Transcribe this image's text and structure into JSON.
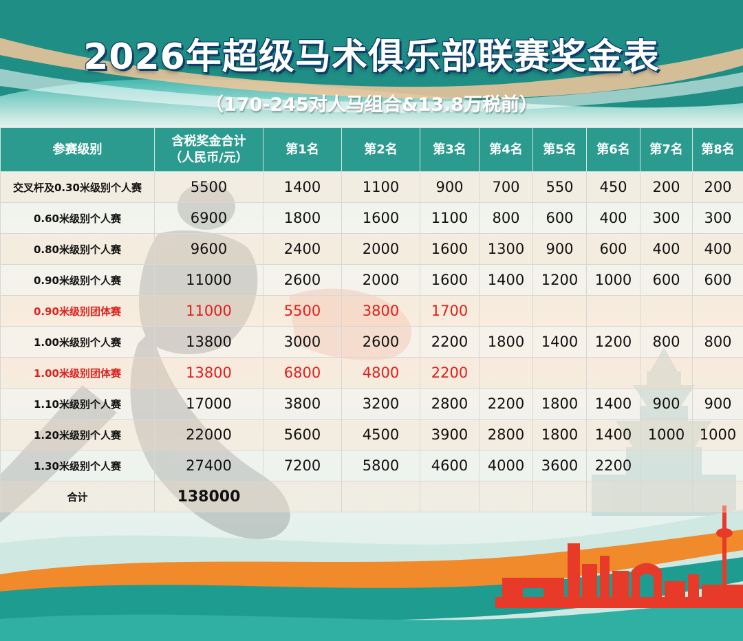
{
  "title": "2026年超级马术俱乐部联赛奖金表",
  "subtitle": "（170-245对人马组合&13.8万税前）",
  "colors": {
    "header_bg": "#2c9b8f",
    "team_text": "#e0201c",
    "title_shadow": "#0b3d6b"
  },
  "table": {
    "headers": [
      "参赛级别",
      "含税奖金合计（人民币/元）",
      "第1名",
      "第2名",
      "第3名",
      "第4名",
      "第5名",
      "第6名",
      "第7名",
      "第8名"
    ],
    "header_total_line1": "含税奖金合计",
    "header_total_line2": "（人民币/元）",
    "rows": [
      [
        "交叉杆及0.30米级别个人赛",
        "5500",
        "1400",
        "1100",
        "900",
        "700",
        "550",
        "450",
        "200",
        "200"
      ],
      [
        "0.60米级别个人赛",
        "6900",
        "1800",
        "1600",
        "1100",
        "800",
        "600",
        "400",
        "300",
        "300"
      ],
      [
        "0.80米级别个人赛",
        "9600",
        "2400",
        "2000",
        "1600",
        "1300",
        "900",
        "600",
        "400",
        "400"
      ],
      [
        "0.90米级别个人赛",
        "11000",
        "2600",
        "2000",
        "1600",
        "1400",
        "1200",
        "1000",
        "600",
        "600"
      ],
      [
        "0.90米级别团体赛",
        "11000",
        "5500",
        "3800",
        "1700",
        "",
        "",
        "",
        "",
        ""
      ],
      [
        "1.00米级别个人赛",
        "13800",
        "3000",
        "2600",
        "2200",
        "1800",
        "1400",
        "1200",
        "800",
        "800"
      ],
      [
        "1.00米级别团体赛",
        "13800",
        "6800",
        "4800",
        "2200",
        "",
        "",
        "",
        "",
        ""
      ],
      [
        "1.10米级别个人赛",
        "17000",
        "3800",
        "3200",
        "2800",
        "2200",
        "1800",
        "1400",
        "900",
        "900"
      ],
      [
        "1.20米级别个人赛",
        "22000",
        "5600",
        "4500",
        "3900",
        "2800",
        "1800",
        "1400",
        "1000",
        "1000"
      ],
      [
        "1.30米级别个人赛",
        "27400",
        "7200",
        "5800",
        "4600",
        "4000",
        "3600",
        "2200",
        "",
        ""
      ]
    ],
    "total": {
      "label": "合计",
      "value": "138000"
    }
  }
}
